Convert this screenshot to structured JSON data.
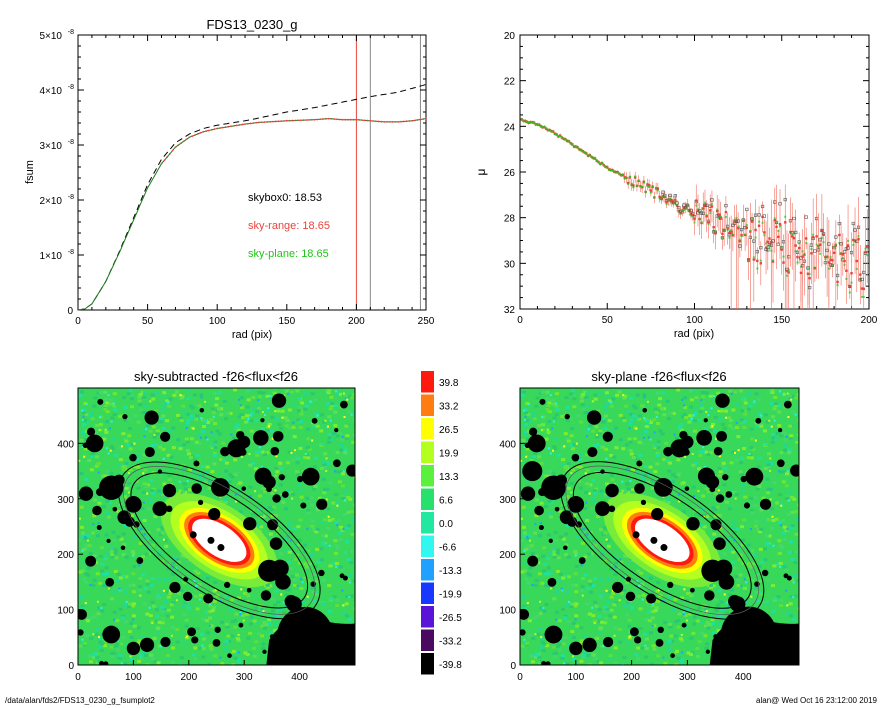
{
  "chart_data": [
    {
      "type": "line",
      "title": "FDS13_0230_g",
      "xlabel": "rad (pix)",
      "ylabel": "fsum",
      "xlim": [
        0,
        250
      ],
      "ylim": [
        0,
        5e-08
      ],
      "x_ticks": [
        "0",
        "50",
        "100",
        "150",
        "200",
        "250"
      ],
      "y_ticks": [
        {
          "mant": "0",
          "exp": ""
        },
        {
          "mant": "1×10",
          "exp": "-8"
        },
        {
          "mant": "2×10",
          "exp": "-8"
        },
        {
          "mant": "3×10",
          "exp": "-8"
        },
        {
          "mant": "4×10",
          "exp": "-8"
        },
        {
          "mant": "5×10",
          "exp": "-8"
        }
      ],
      "vlines": [
        {
          "x": 200,
          "color": "#e8453c"
        },
        {
          "x": 210,
          "color": "#888888"
        },
        {
          "x": 246,
          "color": "#888888"
        }
      ],
      "annotations": [
        {
          "text": "skybox0: 18.53",
          "color": "#000000"
        },
        {
          "text": "sky-range: 18.65",
          "color": "#e8453c"
        },
        {
          "text": "sky-plane: 18.65",
          "color": "#22c41a"
        }
      ],
      "series": [
        {
          "style": "dashed",
          "color": "#000000",
          "x": [
            0,
            5,
            10,
            20,
            30,
            40,
            50,
            60,
            70,
            80,
            90,
            100,
            110,
            120,
            130,
            150,
            170,
            190,
            210,
            230,
            250
          ],
          "y": [
            0,
            2e-10,
            1.1e-09,
            5.2e-09,
            1.08e-08,
            1.68e-08,
            2.28e-08,
            2.74e-08,
            3.04e-08,
            3.2e-08,
            3.3e-08,
            3.36e-08,
            3.4e-08,
            3.44e-08,
            3.49e-08,
            3.6e-08,
            3.68e-08,
            3.78e-08,
            3.88e-08,
            3.96e-08,
            4.1e-08
          ]
        },
        {
          "style": "solid",
          "color": "#1e7a1e",
          "x": [
            0,
            5,
            10,
            20,
            30,
            40,
            50,
            60,
            70,
            80,
            90,
            100,
            110,
            120,
            130,
            150,
            170,
            180,
            190,
            200,
            210,
            220,
            230,
            240,
            250
          ],
          "y": [
            0,
            2e-10,
            1.1e-09,
            5.2e-09,
            1.06e-08,
            1.64e-08,
            2.22e-08,
            2.66e-08,
            2.96e-08,
            3.14e-08,
            3.24e-08,
            3.3e-08,
            3.34e-08,
            3.38e-08,
            3.41e-08,
            3.44e-08,
            3.46e-08,
            3.48e-08,
            3.46e-08,
            3.46e-08,
            3.44e-08,
            3.42e-08,
            3.42e-08,
            3.44e-08,
            3.48e-08
          ]
        }
      ]
    },
    {
      "type": "scatter",
      "title": "",
      "xlabel": "rad (pix)",
      "ylabel": "μ",
      "xlim": [
        0,
        200
      ],
      "ylim": [
        32,
        20
      ],
      "x_ticks": [
        "0",
        "50",
        "100",
        "150",
        "200"
      ],
      "y_ticks": [
        "20",
        "22",
        "24",
        "26",
        "28",
        "30",
        "32"
      ],
      "profile": {
        "x": [
          0,
          10,
          20,
          30,
          40,
          50,
          60,
          70,
          80,
          90,
          100,
          110,
          120,
          130,
          140,
          150,
          160,
          170,
          180,
          190,
          200
        ],
        "y": [
          23.7,
          23.9,
          24.3,
          24.8,
          25.3,
          25.8,
          26.2,
          26.6,
          27.0,
          27.5,
          27.8,
          28.1,
          28.4,
          28.7,
          29.0,
          29.3,
          29.5,
          29.7,
          29.8,
          29.9,
          30.0
        ]
      },
      "colors": {
        "sky_range": "#e8453c",
        "sky_plane": "#22c41a",
        "skybox": "#555555",
        "error": "#f06a5a"
      }
    },
    {
      "type": "heatmap",
      "title": "sky-subtracted -f26<flux<f26",
      "xlim": [
        0,
        500
      ],
      "ylim": [
        0,
        500
      ],
      "x_ticks": [
        "0",
        "100",
        "200",
        "300",
        "400"
      ],
      "y_ticks": [
        "0",
        "100",
        "200",
        "300",
        "400"
      ]
    },
    {
      "type": "heatmap",
      "title": "sky-plane -f26<flux<f26",
      "xlim": [
        0,
        500
      ],
      "ylim": [
        0,
        500
      ],
      "x_ticks": [
        "0",
        "100",
        "200",
        "300",
        "400"
      ],
      "y_ticks": [
        "0",
        "100",
        "200",
        "300",
        "400"
      ]
    }
  ],
  "colorbar": {
    "labels": [
      "39.8",
      "33.2",
      "26.5",
      "19.9",
      "13.3",
      "6.6",
      "0.0",
      "-6.6",
      "-13.3",
      "-19.9",
      "-26.5",
      "-33.2",
      "-39.8"
    ],
    "colors": [
      "#ff1a10",
      "#ff7d10",
      "#ffff00",
      "#b2ff20",
      "#5af03c",
      "#28e06e",
      "#20e8a0",
      "#30f8f0",
      "#20a0ff",
      "#1838ff",
      "#5a14d8",
      "#4a0a60",
      "#000000"
    ]
  },
  "footer": {
    "path": "/data/alan/fds2/FDS13_0230_g_fsumplot2",
    "stamp": "alan@  Wed Oct 16 23:12:00 2019"
  }
}
